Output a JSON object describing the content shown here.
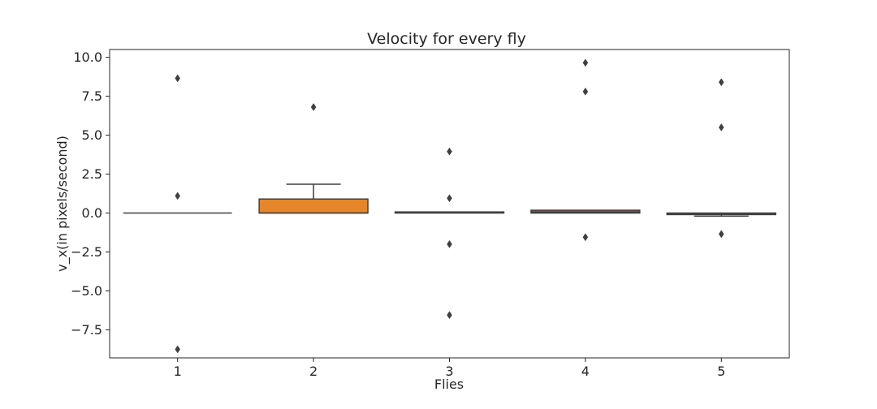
{
  "chart_data": {
    "type": "box",
    "title": "Velocity for every fly",
    "xlabel": "Flies",
    "ylabel": "v_x(in pixels/second)",
    "ylim": [
      -9.3,
      10.5
    ],
    "yticks": [
      10.0,
      7.5,
      5.0,
      2.5,
      0.0,
      -2.5,
      -5.0,
      -7.5
    ],
    "ytick_labels": [
      "10.0",
      "7.5",
      "5.0",
      "2.5",
      "0.0",
      "−2.5",
      "−5.0",
      "−7.5"
    ],
    "grid": false,
    "categories": [
      "1",
      "2",
      "3",
      "4",
      "5"
    ],
    "boxes": [
      {
        "category": "1",
        "color": "#1f77b4",
        "q1": 0.0,
        "median": 0.0,
        "q3": 0.0,
        "whisker_low": 0.0,
        "whisker_high": 0.0,
        "outliers": [
          8.65,
          1.1,
          -8.75
        ]
      },
      {
        "category": "2",
        "color": "#e6862a",
        "q1": 0.0,
        "median": 0.0,
        "q3": 0.9,
        "whisker_low": 0.0,
        "whisker_high": 1.85,
        "outliers": [
          6.8
        ]
      },
      {
        "category": "3",
        "color": "#3a9b3a",
        "q1": 0.0,
        "median": 0.05,
        "q3": 0.07,
        "whisker_low": 0.0,
        "whisker_high": 0.07,
        "outliers": [
          3.95,
          0.95,
          -2.0,
          -6.55
        ]
      },
      {
        "category": "4",
        "color": "#c43b3b",
        "q1": 0.0,
        "median": 0.05,
        "q3": 0.18,
        "whisker_low": 0.0,
        "whisker_high": 0.2,
        "outliers": [
          9.65,
          7.8,
          -1.55
        ]
      },
      {
        "category": "5",
        "color": "#8a6fb0",
        "q1": -0.1,
        "median": -0.03,
        "q3": 0.0,
        "whisker_low": -0.2,
        "whisker_high": 0.0,
        "outliers": [
          8.4,
          5.5,
          -1.35
        ]
      }
    ]
  }
}
